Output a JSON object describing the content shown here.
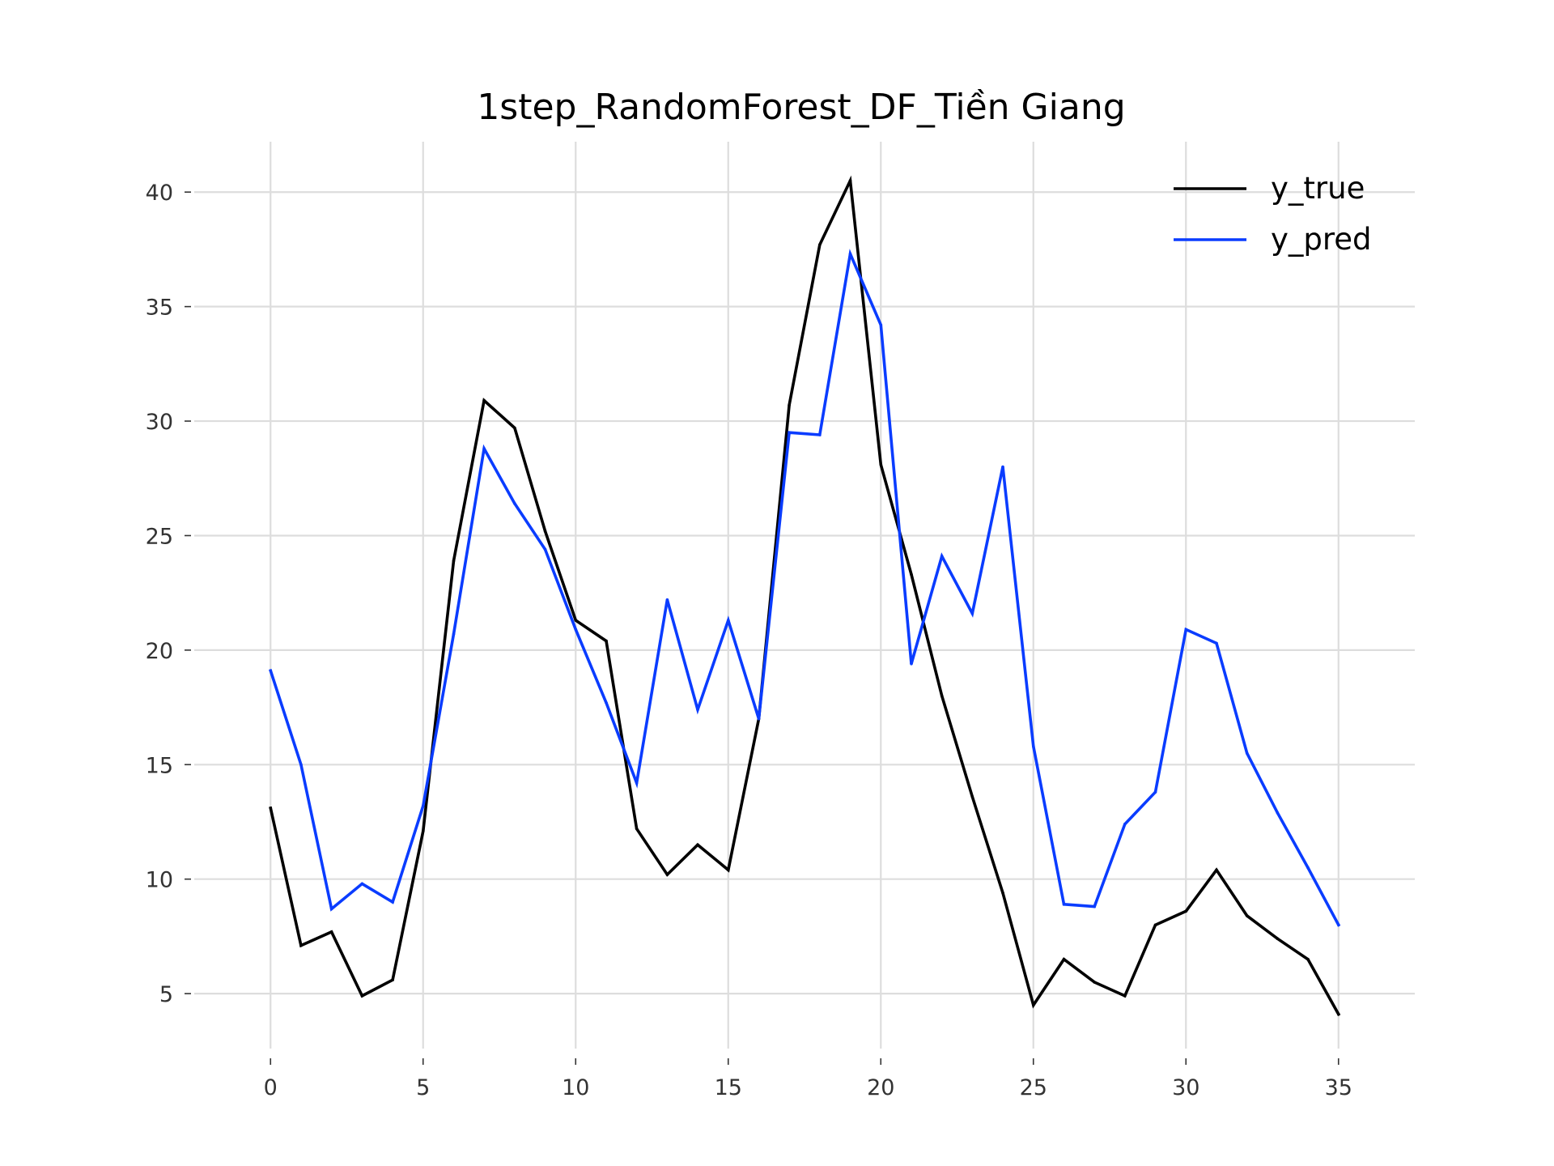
{
  "chart_data": {
    "type": "line",
    "title": "1step_RandomForest_DF_Tiền Giang",
    "xlabel": "",
    "ylabel": "",
    "xlim": [
      -2.5,
      37.5
    ],
    "ylim": [
      2.6,
      42.2
    ],
    "xticks": [
      0,
      5,
      10,
      15,
      20,
      25,
      30,
      35
    ],
    "yticks": [
      5,
      10,
      15,
      20,
      25,
      30,
      35,
      40
    ],
    "grid": true,
    "legend_position": "top-right",
    "x": [
      0,
      1,
      2,
      3,
      4,
      5,
      6,
      7,
      8,
      9,
      10,
      11,
      12,
      13,
      14,
      15,
      16,
      17,
      18,
      19,
      20,
      21,
      22,
      23,
      24,
      25,
      26,
      27,
      28,
      29,
      30,
      31,
      32,
      33,
      34,
      35
    ],
    "series": [
      {
        "name": "y_true",
        "color": "#000000",
        "values": [
          13.1,
          7.1,
          7.7,
          4.9,
          5.6,
          12.1,
          23.9,
          30.9,
          29.7,
          25.2,
          21.3,
          20.4,
          12.2,
          10.2,
          11.5,
          10.4,
          17.0,
          30.7,
          37.7,
          40.5,
          28.1,
          23.3,
          18.0,
          13.6,
          9.4,
          4.5,
          6.5,
          5.5,
          4.9,
          8.0,
          8.6,
          10.4,
          8.4,
          7.4,
          6.5,
          4.1
        ]
      },
      {
        "name": "y_pred",
        "color": "#0a3cff",
        "values": [
          19.1,
          15.0,
          8.7,
          9.8,
          9.0,
          13.2,
          20.7,
          28.8,
          26.4,
          24.4,
          20.9,
          17.7,
          14.2,
          22.2,
          17.4,
          21.3,
          17.0,
          29.5,
          29.4,
          37.3,
          34.2,
          19.4,
          24.1,
          21.6,
          28.0,
          15.8,
          8.9,
          8.8,
          12.4,
          13.8,
          20.9,
          20.3,
          15.5,
          12.9,
          10.5,
          8.0
        ]
      }
    ]
  }
}
